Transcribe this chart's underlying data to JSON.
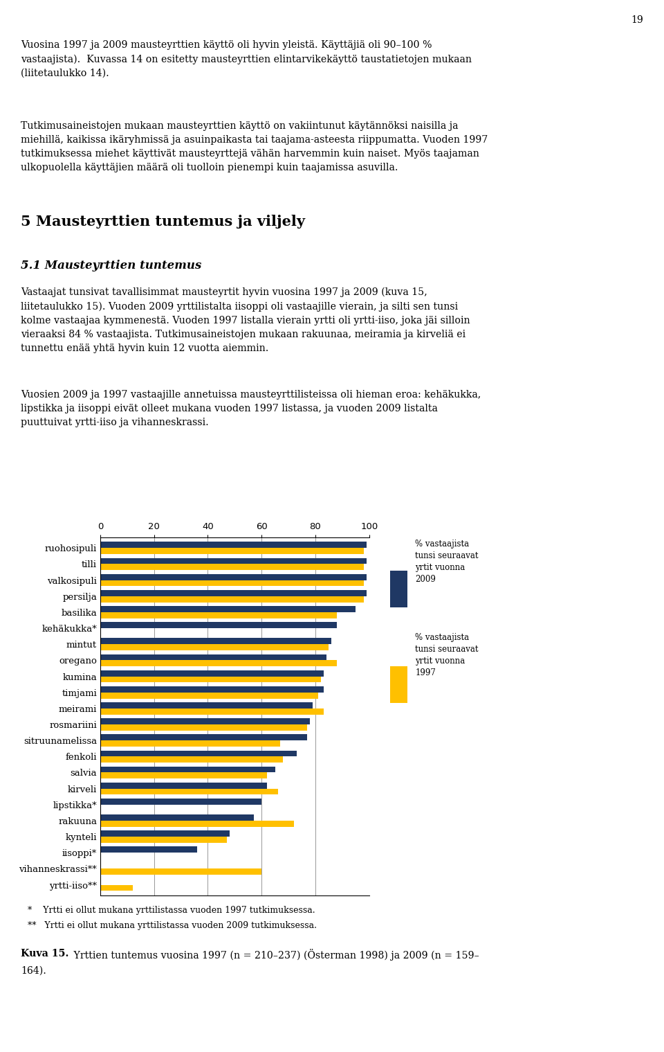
{
  "categories": [
    "ruohosipuli",
    "tilli",
    "valkosipuli",
    "persilja",
    "basilika",
    "kehäkukka*",
    "mintut",
    "oregano",
    "kumina",
    "timjami",
    "meirami",
    "rosmariini",
    "sitruunamelissa",
    "fenkoli",
    "salvia",
    "kirveli",
    "lipstikka*",
    "rakuuna",
    "kynteli",
    "iisoppi*",
    "vihanneskrassi**",
    "yrtti-iiso**"
  ],
  "values_2009": [
    99,
    99,
    99,
    99,
    95,
    88,
    86,
    84,
    83,
    83,
    79,
    78,
    77,
    73,
    65,
    62,
    60,
    57,
    48,
    36,
    0,
    0
  ],
  "values_1997": [
    98,
    98,
    98,
    98,
    88,
    0,
    85,
    88,
    82,
    81,
    83,
    77,
    67,
    68,
    62,
    66,
    0,
    72,
    47,
    0,
    60,
    12
  ],
  "color_2009": "#1F3864",
  "color_1997": "#FFC000",
  "legend_2009": "% vastaajista\ntunsi seuraavat\nyrtit vuonna\n2009",
  "legend_1997": "% vastaajista\ntunsi seuraavat\nyrtit vuonna\n1997",
  "xlim": [
    0,
    100
  ],
  "xticks": [
    0,
    20,
    40,
    60,
    80,
    100
  ],
  "bar_height": 0.38,
  "background_color": "#ffffff",
  "legend_bg": "#dde8d0",
  "footnote1": "*    Yrtti ei ollut mukana yrttilistassa vuoden 1997 tutkimuksessa.",
  "footnote2": "**   Yrtti ei ollut mukana yrttilistassa vuoden 2009 tutkimuksessa."
}
